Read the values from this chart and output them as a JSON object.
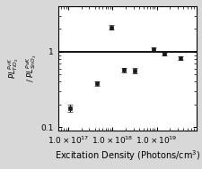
{
  "x_data": [
    1.1e+17,
    4.5e+17,
    9.5e+17,
    1.8e+18,
    3.2e+18,
    8.5e+18,
    1.5e+19,
    3.5e+19
  ],
  "y_data": [
    0.18,
    0.38,
    2.1,
    0.57,
    0.56,
    1.08,
    0.93,
    0.82
  ],
  "y_err": [
    0.02,
    0.03,
    0.13,
    0.045,
    0.045,
    0.055,
    0.045,
    0.045
  ],
  "hline_y": 1.0,
  "xlabel": "Excitation Density (Photons/cm$^3$)",
  "ylabel_line1": "$PL_{TiO_2}^{PvK}$",
  "ylabel_line2": "/ $PL_{SnO_2}^{PvK}$",
  "xlim": [
    6e+16,
    8e+19
  ],
  "ylim": [
    0.09,
    4.0
  ],
  "figure_facecolor": "#d8d8d8",
  "plot_facecolor": "#ffffff",
  "marker_color": "#1a1a1a",
  "line_color": "#000000",
  "marker_size": 3.5,
  "capsize": 2,
  "elinewidth": 0.8,
  "hline_linewidth": 1.3,
  "tick_label_fontsize": 6.5,
  "axis_label_fontsize": 7,
  "ylabel_fontsize": 6
}
